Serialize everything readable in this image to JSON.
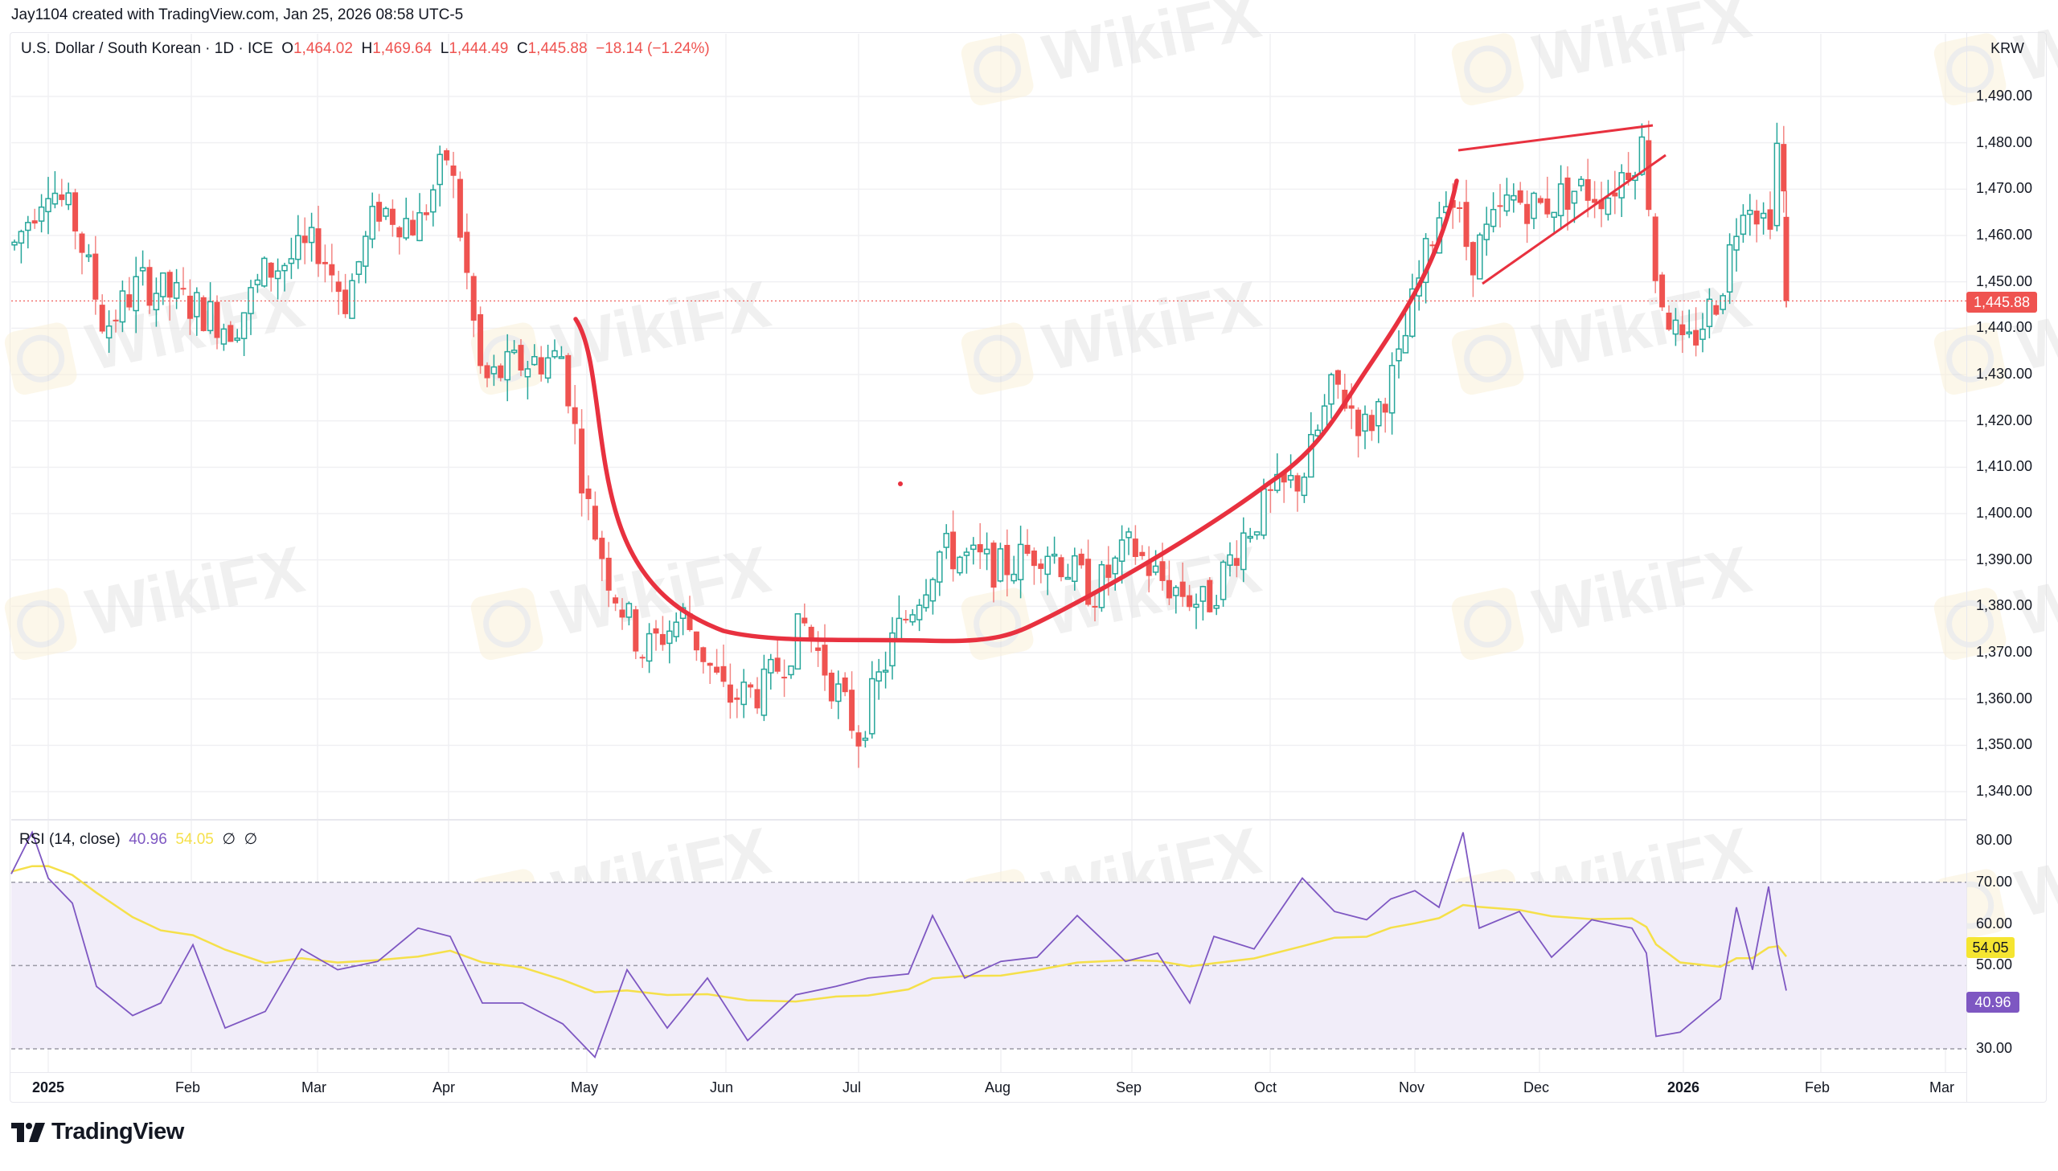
{
  "header": {
    "credit": "Jay1104 created with TradingView.com, Jan 25, 2026 08:58 UTC-5"
  },
  "symbol": {
    "name": "U.S. Dollar / South Korean",
    "interval": "1D",
    "exchange": "ICE",
    "title": "U.S. Dollar / South Korean · 1D · ICE",
    "open_label": "O",
    "open": "1,464.02",
    "high_label": "H",
    "high": "1,469.64",
    "low_label": "L",
    "low": "1,444.49",
    "close_label": "C",
    "close": "1,445.88",
    "change": "−18.14 (−1.24%)"
  },
  "price_axis": {
    "unit": "KRW",
    "ticks": [
      "1,490.00",
      "1,480.00",
      "1,470.00",
      "1,460.00",
      "1,450.00",
      "1,440.00",
      "1,430.00",
      "1,420.00",
      "1,410.00",
      "1,400.00",
      "1,390.00",
      "1,380.00",
      "1,370.00",
      "1,360.00",
      "1,350.00",
      "1,340.00"
    ],
    "last_price_label": "1,445.88"
  },
  "rsi": {
    "title": "RSI (14, close)",
    "value": "40.96",
    "ma_value": "54.05",
    "extra_1": "∅",
    "extra_2": "∅",
    "ticks": [
      "80.00",
      "70.00",
      "60.00",
      "50.00",
      "30.00"
    ],
    "upper_band": 70,
    "middle_band": 50,
    "lower_band": 30
  },
  "time_axis": {
    "labels": [
      {
        "text": "2025",
        "year": true
      },
      {
        "text": "Feb",
        "year": false
      },
      {
        "text": "Mar",
        "year": false
      },
      {
        "text": "Apr",
        "year": false
      },
      {
        "text": "May",
        "year": false
      },
      {
        "text": "Jun",
        "year": false
      },
      {
        "text": "Jul",
        "year": false
      },
      {
        "text": "Aug",
        "year": false
      },
      {
        "text": "Sep",
        "year": false
      },
      {
        "text": "Oct",
        "year": false
      },
      {
        "text": "Nov",
        "year": false
      },
      {
        "text": "Dec",
        "year": false
      },
      {
        "text": "2026",
        "year": true
      },
      {
        "text": "Feb",
        "year": false
      },
      {
        "text": "Mar",
        "year": false
      }
    ]
  },
  "branding": {
    "logo_text": "TradingView",
    "watermark": "WikiFX"
  },
  "colors": {
    "up": "#26a69a",
    "down": "#ef5350",
    "annotation": "#e8313f",
    "rsi_line": "#7e57c2",
    "rsi_ma": "#f5e04a",
    "rsi_band_fill": "#f1edf9",
    "grid": "#f0f0f3"
  },
  "chart_data": [
    {
      "type": "candlestick",
      "title": "U.S. Dollar / South Korean · 1D · ICE",
      "xlabel": "",
      "ylabel": "KRW",
      "ylim": [
        1335,
        1495
      ],
      "grid": true,
      "last": {
        "open": 1464.02,
        "high": 1469.64,
        "low": 1444.49,
        "close": 1445.88,
        "change": -18.14,
        "change_pct": -1.24
      },
      "x": [
        "2025-01",
        "2025-02",
        "2025-03",
        "2025-04",
        "2025-05",
        "2025-06",
        "2025-07",
        "2025-08",
        "2025-09",
        "2025-10",
        "2025-11",
        "2025-12",
        "2026-01"
      ],
      "monthly_ohlc_approx": [
        {
          "month": "2025-01",
          "open": 1458,
          "high": 1487,
          "low": 1427,
          "close": 1440
        },
        {
          "month": "2025-02",
          "open": 1440,
          "high": 1462,
          "low": 1425,
          "close": 1445
        },
        {
          "month": "2025-03",
          "open": 1445,
          "high": 1471,
          "low": 1440,
          "close": 1466
        },
        {
          "month": "2025-04",
          "open": 1466,
          "high": 1487,
          "low": 1414,
          "close": 1437
        },
        {
          "month": "2025-05",
          "open": 1437,
          "high": 1445,
          "low": 1365,
          "close": 1364
        },
        {
          "month": "2025-06",
          "open": 1364,
          "high": 1390,
          "low": 1350,
          "close": 1358
        },
        {
          "month": "2025-07",
          "open": 1358,
          "high": 1396,
          "low": 1348,
          "close": 1390
        },
        {
          "month": "2025-08",
          "open": 1390,
          "high": 1403,
          "low": 1371,
          "close": 1390
        },
        {
          "month": "2025-09",
          "open": 1390,
          "high": 1400,
          "low": 1372,
          "close": 1400
        },
        {
          "month": "2025-10",
          "open": 1400,
          "high": 1440,
          "low": 1398,
          "close": 1425
        },
        {
          "month": "2025-11",
          "open": 1425,
          "high": 1478,
          "low": 1420,
          "close": 1470
        },
        {
          "month": "2025-12",
          "open": 1470,
          "high": 1484,
          "low": 1443,
          "close": 1445
        },
        {
          "month": "2026-01",
          "open": 1445,
          "high": 1482,
          "low": 1430,
          "close": 1445.88
        }
      ],
      "annotations": [
        {
          "type": "curve",
          "label": "rounded bottom (cup)",
          "from": "2025-05 ~1442",
          "trough": "2025-07 ~1372",
          "to": "2025-11 ~1471"
        },
        {
          "type": "trendline",
          "label": "rising wedge upper",
          "from": "2025-11 ~1478",
          "to": "2025-12 ~1484"
        },
        {
          "type": "trendline",
          "label": "rising wedge lower",
          "from": "2025-11 ~1449",
          "to": "2025-12 ~1477"
        },
        {
          "type": "horizontal-line",
          "label": "last price",
          "value": 1445.88
        }
      ]
    },
    {
      "type": "line",
      "title": "RSI (14, close)",
      "ylim": [
        26,
        82
      ],
      "bands": {
        "upper": 70,
        "middle": 50,
        "lower": 30
      },
      "x": [
        "2025-01",
        "2025-02",
        "2025-03",
        "2025-04",
        "2025-05",
        "2025-06",
        "2025-07",
        "2025-08",
        "2025-09",
        "2025-10",
        "2025-11",
        "2025-12",
        "2026-01"
      ],
      "series": [
        {
          "name": "RSI",
          "values": [
            75,
            44,
            52,
            55,
            30,
            40,
            48,
            58,
            45,
            62,
            78,
            58,
            40.96
          ]
        },
        {
          "name": "RSI-based MA",
          "values": [
            72,
            50,
            48,
            55,
            42,
            38,
            45,
            58,
            50,
            55,
            70,
            58,
            54.05
          ]
        }
      ],
      "last": {
        "rsi": 40.96,
        "ma": 54.05
      }
    }
  ]
}
